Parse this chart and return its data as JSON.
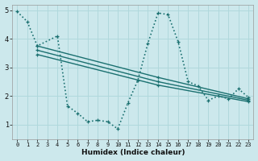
{
  "xlabel": "Humidex (Indice chaleur)",
  "bg_color": "#cce8ec",
  "grid_color": "#b0d8dc",
  "line_color": "#1a7070",
  "xlim": [
    -0.5,
    23.5
  ],
  "ylim": [
    0.5,
    5.2
  ],
  "yticks": [
    1,
    2,
    3,
    4,
    5
  ],
  "xticks": [
    0,
    1,
    2,
    3,
    4,
    5,
    6,
    7,
    8,
    9,
    10,
    11,
    12,
    13,
    14,
    15,
    16,
    17,
    18,
    19,
    20,
    21,
    22,
    23
  ],
  "series": [
    {
      "x": [
        0,
        1,
        2,
        4,
        5,
        6,
        7,
        8,
        9,
        10,
        11,
        12,
        13,
        14,
        15,
        16,
        17,
        18,
        19,
        20,
        21,
        22,
        23
      ],
      "y": [
        4.95,
        4.6,
        3.75,
        4.1,
        1.65,
        1.4,
        1.1,
        1.15,
        1.1,
        0.85,
        1.75,
        2.55,
        3.85,
        4.9,
        4.85,
        3.9,
        2.5,
        2.35,
        1.85,
        2.0,
        1.9,
        2.25,
        1.95
      ],
      "linestyle": "dotted",
      "linewidth": 1.2
    },
    {
      "x": [
        2,
        14,
        23
      ],
      "y": [
        3.75,
        2.65,
        1.9
      ],
      "linestyle": "solid",
      "linewidth": 1.0
    },
    {
      "x": [
        2,
        14,
        23
      ],
      "y": [
        3.6,
        2.5,
        1.85
      ],
      "linestyle": "solid",
      "linewidth": 1.0
    },
    {
      "x": [
        2,
        14,
        23
      ],
      "y": [
        3.45,
        2.38,
        1.8
      ],
      "linestyle": "solid",
      "linewidth": 1.0
    }
  ]
}
